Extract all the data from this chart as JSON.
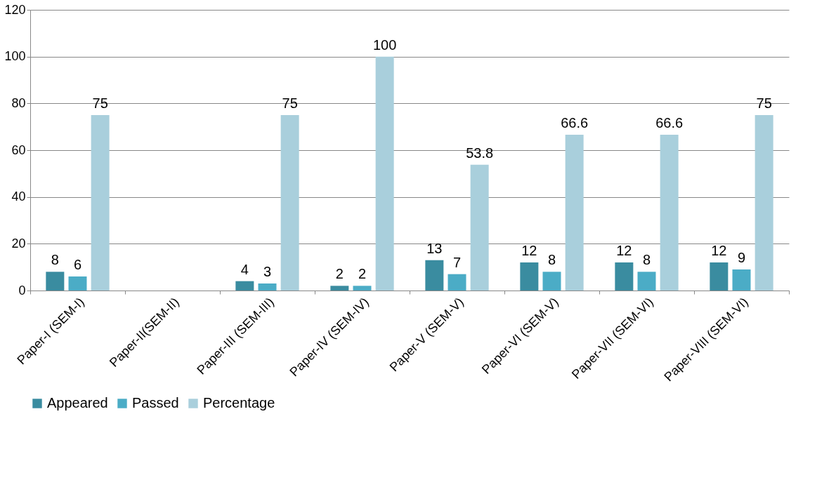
{
  "chart_data": {
    "type": "bar",
    "categories": [
      "Paper-I (SEM-I)",
      "Paper-II(SEM-II)",
      "Paper-III (SEM-III)",
      "Paper-IV (SEM-IV)",
      "Paper-V (SEM-V)",
      "Paper-VI (SEM-V)",
      "Paper-VII (SEM-VI)",
      "Paper-VIII (SEM-VI)"
    ],
    "series": [
      {
        "name": "Appeared",
        "color": "#3a8ca0",
        "values": [
          8,
          null,
          4,
          2,
          13,
          12,
          12,
          12
        ]
      },
      {
        "name": "Passed",
        "color": "#4bacc6",
        "values": [
          6,
          null,
          3,
          2,
          7,
          8,
          8,
          9
        ]
      },
      {
        "name": "Percentage",
        "color": "#a9cfdc",
        "values": [
          75,
          null,
          75,
          100,
          53.8,
          66.6,
          66.6,
          75
        ]
      }
    ],
    "ylim": [
      0,
      120
    ],
    "yticks": [
      0,
      20,
      40,
      60,
      80,
      100,
      120
    ],
    "grid": "y",
    "legend": "bottom",
    "data_labels": true
  }
}
